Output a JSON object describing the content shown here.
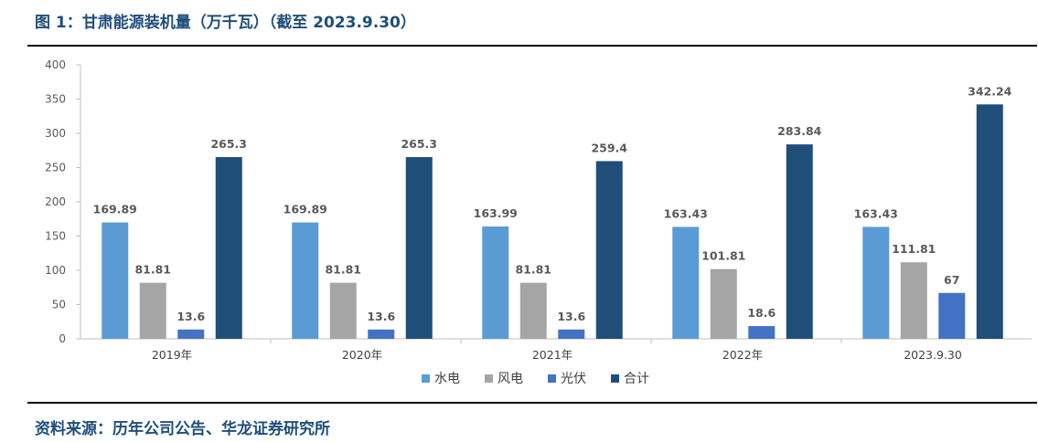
{
  "figure": {
    "title": "图 1：甘肃能源装机量（万千瓦）（截至 2023.9.30）",
    "source": "资料来源：历年公司公告、华龙证券研究所"
  },
  "chart_data": {
    "type": "bar",
    "title": "甘肃能源装机量（万千瓦）（截至 2023.9.30）",
    "xlabel": "",
    "ylabel": "",
    "ylim": [
      0,
      400
    ],
    "yticks": [
      0,
      50,
      100,
      150,
      200,
      250,
      300,
      350,
      400
    ],
    "categories": [
      "2019年",
      "2020年",
      "2021年",
      "2022年",
      "2023.9.30"
    ],
    "series": [
      {
        "name": "水电",
        "color": "#5b9bd5",
        "values": [
          169.89,
          169.89,
          163.99,
          163.43,
          163.43
        ]
      },
      {
        "name": "风电",
        "color": "#a5a5a5",
        "values": [
          81.81,
          81.81,
          81.81,
          101.81,
          111.81
        ]
      },
      {
        "name": "光伏",
        "color": "#4472c4",
        "values": [
          13.6,
          13.6,
          13.6,
          18.6,
          67
        ]
      },
      {
        "name": "合计",
        "color": "#1f4e79",
        "values": [
          265.3,
          265.3,
          259.4,
          283.84,
          342.24
        ]
      }
    ],
    "legend_position": "bottom-center",
    "grid": false
  }
}
